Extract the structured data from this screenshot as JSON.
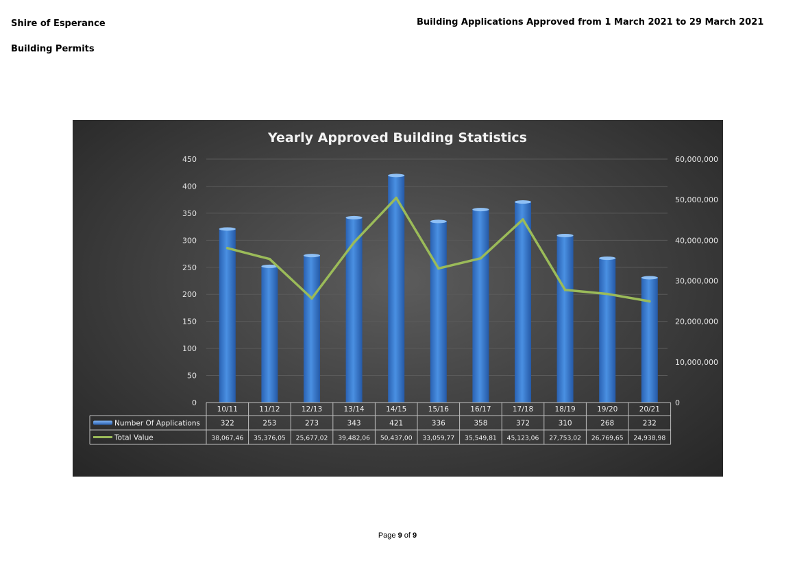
{
  "header": {
    "organisation": "Shire of Esperance",
    "section": "Building Permits",
    "report_title": "Building Applications Approved from 1 March 2021 to 29 March 2021"
  },
  "footer": {
    "page_word": "Page",
    "page_current": "9",
    "of_word": "of",
    "page_total": "9"
  },
  "chart_data": {
    "type": "bar",
    "title": "Yearly Approved Building Statistics",
    "categories": [
      "10/11",
      "11/12",
      "12/13",
      "13/14",
      "14/15",
      "15/16",
      "16/17",
      "17/18",
      "18/19",
      "19/20",
      "20/21"
    ],
    "series": [
      {
        "name": "Number Of Applications",
        "type": "bar",
        "axis": "left",
        "color": "#3a7fd5",
        "values": [
          322,
          253,
          273,
          343,
          421,
          336,
          358,
          372,
          310,
          268,
          232
        ]
      },
      {
        "name": "Total Value",
        "type": "line",
        "axis": "right",
        "color": "#9bbb59",
        "values": [
          38067460,
          35376050,
          25677020,
          39482060,
          50437000,
          33059770,
          35549810,
          45123060,
          27753020,
          26769650,
          24938980
        ]
      }
    ],
    "table_rows": [
      {
        "label": "Number Of Applications",
        "cells": [
          "322",
          "253",
          "273",
          "343",
          "421",
          "336",
          "358",
          "372",
          "310",
          "268",
          "232"
        ]
      },
      {
        "label": "Total Value",
        "cells": [
          "38,067,46",
          "35,376,05",
          "25,677,02",
          "39,482,06",
          "50,437,00",
          "33,059,77",
          "35,549,81",
          "45,123,06",
          "27,753,02",
          "26,769,65",
          "24,938,98"
        ]
      }
    ],
    "y_left": {
      "min": 0,
      "max": 450,
      "ticks": [
        "0",
        "50",
        "100",
        "150",
        "200",
        "250",
        "300",
        "350",
        "400",
        "450"
      ]
    },
    "y_right": {
      "min": 0,
      "max": 60000000,
      "ticks": [
        "0",
        "10,000,000",
        "20,000,000",
        "30,000,000",
        "40,000,000",
        "50,000,000",
        "60,000,000"
      ]
    },
    "grid": true,
    "legend": "data-table"
  }
}
